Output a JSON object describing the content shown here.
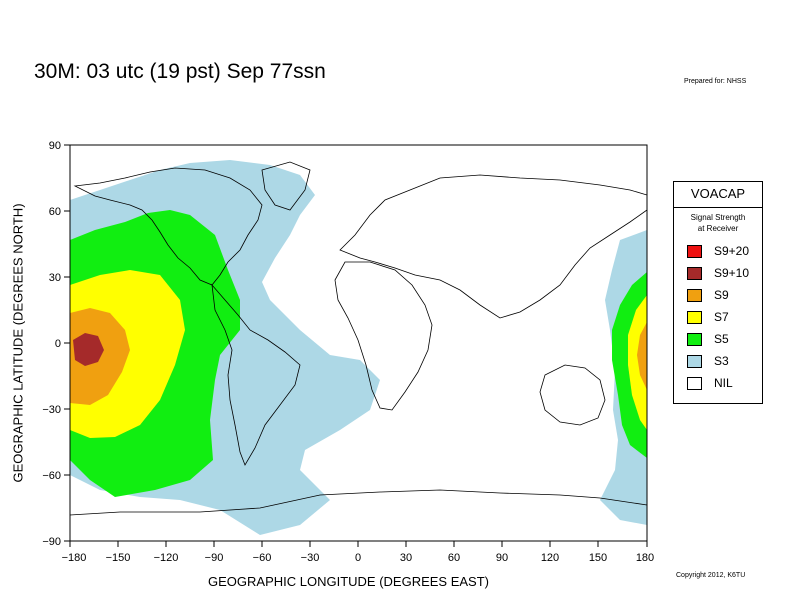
{
  "title": "30M:  03 utc (19 pst) Sep 77ssn",
  "prepared_for": "Prepared for: NHSS",
  "copyright": "Copyright 2012, K6TU",
  "axes": {
    "xlabel": "GEOGRAPHIC LONGITUDE (DEGREES EAST)",
    "ylabel": "GEOGRAPHIC LATITUDE (DEGREES NORTH)",
    "x_ticks": [
      "−180",
      "−150",
      "−120",
      "−90",
      "−60",
      "−30",
      "0",
      "30",
      "60",
      "90",
      "120",
      "150",
      "180"
    ],
    "y_ticks": [
      "90",
      "60",
      "30",
      "0",
      "−30",
      "−60",
      "−90"
    ],
    "xlim": [
      -180,
      180
    ],
    "ylim": [
      -90,
      90
    ]
  },
  "legend": {
    "title": "VOACAP",
    "subtitle_line1": "Signal Strength",
    "subtitle_line2": "at Receiver",
    "items": [
      {
        "label": "S9+20",
        "color": "#ee1111"
      },
      {
        "label": "S9+10",
        "color": "#a52a2a"
      },
      {
        "label": "S9",
        "color": "#f0a010"
      },
      {
        "label": "S7",
        "color": "#ffff00"
      },
      {
        "label": "S5",
        "color": "#11ee11"
      },
      {
        "label": "S3",
        "color": "#add8e6"
      },
      {
        "label": "NIL",
        "color": "#ffffff"
      }
    ]
  }
}
